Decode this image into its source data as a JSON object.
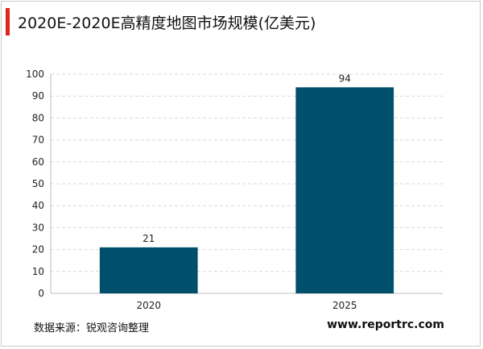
{
  "title": "2020E-2020E高精度地图市场规模(亿美元)",
  "footer": {
    "source": "数据来源：锐观咨询整理",
    "website": "www.reportrc.com"
  },
  "colors": {
    "bar": "#00506b",
    "accent": "#e0261b",
    "grid": "#d9d9d9"
  },
  "chart_data": {
    "type": "bar",
    "categories": [
      "2020",
      "2025"
    ],
    "values": [
      21,
      94
    ],
    "data_labels": [
      "21",
      "94"
    ],
    "ylim": [
      0,
      100
    ],
    "yticks": [
      0,
      10,
      20,
      30,
      40,
      50,
      60,
      70,
      80,
      90,
      100
    ],
    "grid": true,
    "legend": "none"
  }
}
